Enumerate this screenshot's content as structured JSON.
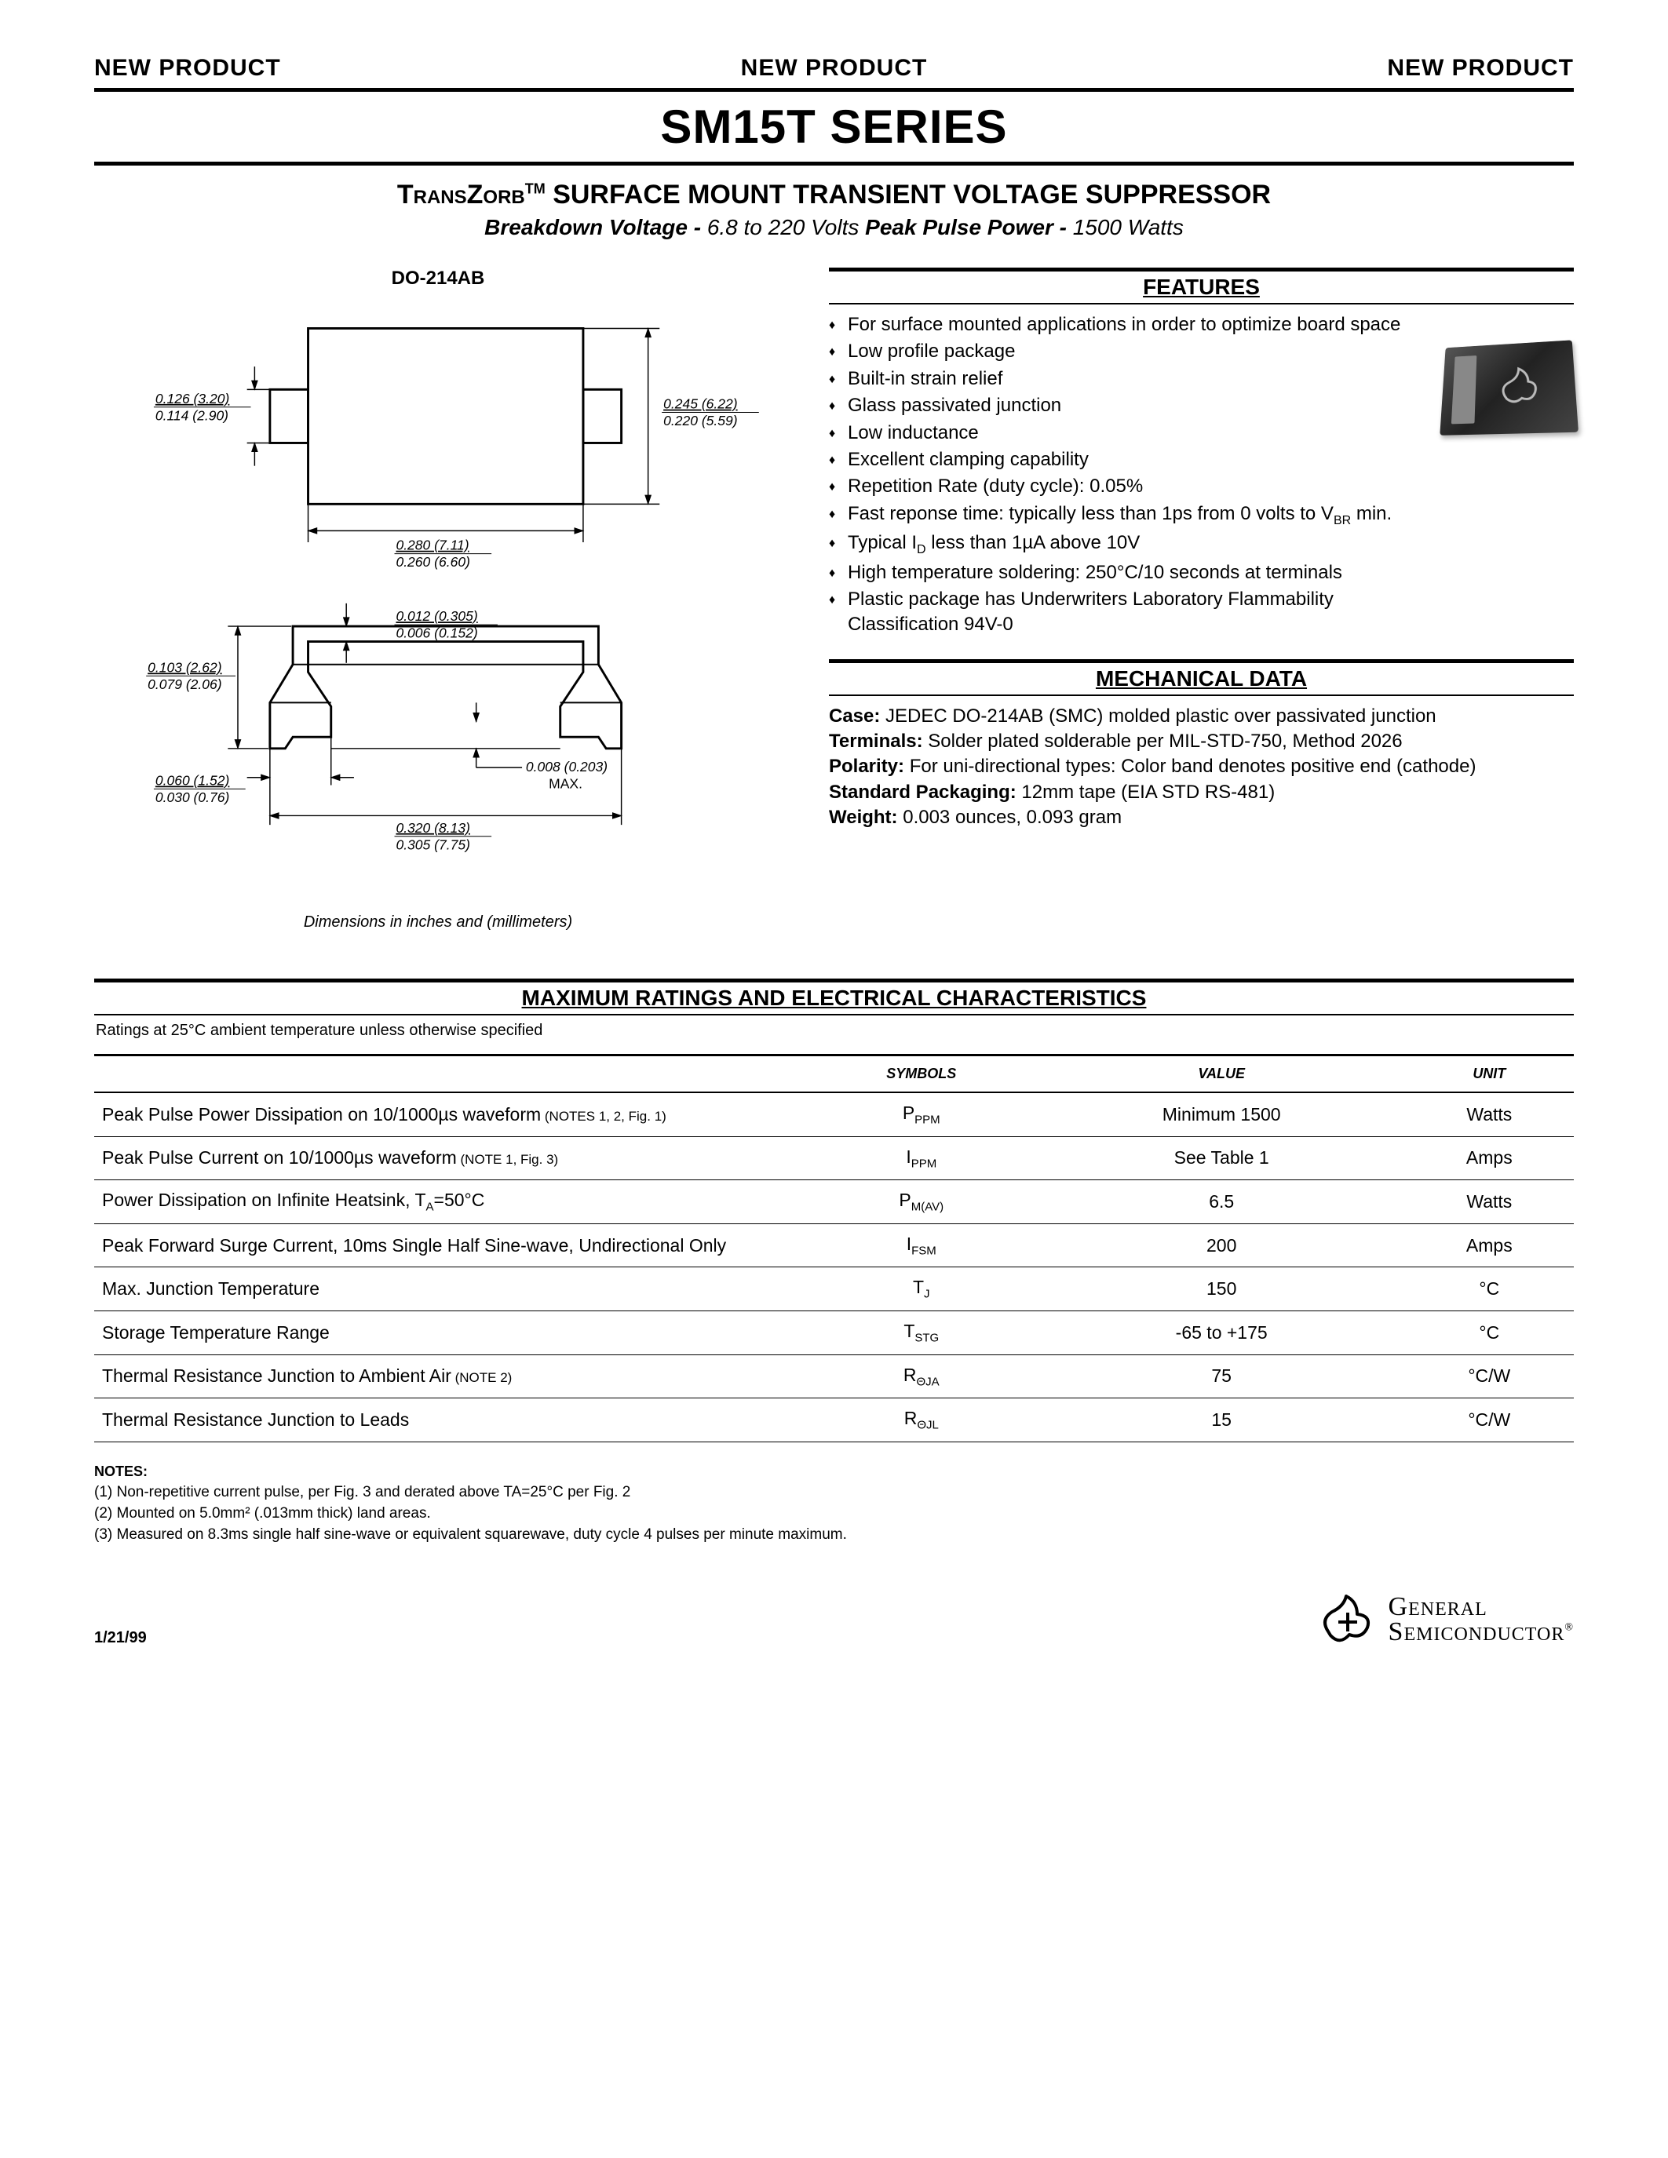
{
  "banner": {
    "text": "NEW PRODUCT"
  },
  "title": "SM15T SERIES",
  "subtitle1_pre": "TransZorb",
  "subtitle1_tm": "TM",
  "subtitle1_rest": " SURFACE MOUNT TRANSIENT VOLTAGE SUPPRESSOR",
  "subtitle2": {
    "bv_label": "Breakdown Voltage - ",
    "bv_val": "6.8 to 220 Volts",
    "ppp_label": "   Peak Pulse Power - ",
    "ppp_val": "1500 Watts"
  },
  "package_label": "DO-214AB",
  "diagram": {
    "top": {
      "left_dim_top": "0.126 (3.20)",
      "left_dim_bot": "0.114 (2.90)",
      "right_dim_top": "0.245 (6.22)",
      "right_dim_bot": "0.220 (5.59)",
      "bottom_dim_top": "0.280 (7.11)",
      "bottom_dim_bot": "0.260 (6.60)"
    },
    "side": {
      "top_dim_top": "0.012 (0.305)",
      "top_dim_bot": "0.006 (0.152)",
      "left_dim_top": "0.103 (2.62)",
      "left_dim_bot": "0.079 (2.06)",
      "botleft_dim_top": "0.060 (1.52)",
      "botleft_dim_bot": "0.030 (0.76)",
      "botright_dim_top": "0.008 (0.203)",
      "botright_dim_bot": "MAX.",
      "botwidth_top": "0.320 (8.13)",
      "botwidth_bot": "0.305 (7.75)"
    },
    "caption": "Dimensions in inches and (millimeters)"
  },
  "features": {
    "heading": "FEATURES",
    "items": [
      "For surface mounted applications in order to optimize board space",
      "Low profile package",
      "Built-in strain relief",
      "Glass passivated junction",
      "Low inductance",
      "Excellent clamping capability",
      "Repetition Rate (duty cycle): 0.05%",
      "Fast reponse time: typically less than 1ps from 0 volts to V<sub>BR</sub> min.",
      "Typical I<sub>D</sub> less than 1µA above 10V",
      "High temperature soldering: 250°C/10 seconds at terminals",
      "Plastic package has Underwriters Laboratory Flammability Classification 94V-0"
    ]
  },
  "mechdata": {
    "heading": "MECHANICAL DATA",
    "case_label": "Case:",
    "case_val": " JEDEC DO-214AB (SMC) molded plastic over passivated junction",
    "term_label": "Terminals:",
    "term_val": " Solder plated solderable per MIL-STD-750, Method 2026",
    "pol_label": "Polarity:",
    "pol_val": " For uni-directional types: Color band denotes positive end (cathode)",
    "pkg_label": "Standard Packaging:",
    "pkg_val": " 12mm tape (EIA STD RS-481)",
    "wt_label": "Weight:",
    "wt_val": " 0.003 ounces, 0.093 gram"
  },
  "maxratings": {
    "heading": "MAXIMUM RATINGS AND ELECTRICAL CHARACTERISTICS",
    "condition": "Ratings at 25°C ambient temperature unless otherwise specified",
    "headers": [
      "",
      "SYMBOLS",
      "VALUE",
      "UNIT"
    ],
    "rows": [
      {
        "desc": "Peak Pulse Power Dissipation on 10/1000µs waveform",
        "note": " (NOTES 1, 2, Fig. 1)",
        "sym_pre": "P",
        "sym_sub": "PPM",
        "value": "Minimum 1500",
        "unit": "Watts"
      },
      {
        "desc": "Peak Pulse Current on 10/1000µs waveform",
        "note": " (NOTE 1, Fig. 3)",
        "sym_pre": "I",
        "sym_sub": "PPM",
        "value": "See Table 1",
        "unit": "Amps"
      },
      {
        "desc": "Power Dissipation on Infinite Heatsink, T",
        "desc_sub": "A",
        "desc_post": "=50°C",
        "note": "",
        "sym_pre": "P",
        "sym_sub": "M(AV)",
        "value": "6.5",
        "unit": "Watts"
      },
      {
        "desc": "Peak Forward Surge Current, 10ms Single Half Sine-wave, Undirectional Only",
        "note": "",
        "sym_pre": "I",
        "sym_sub": "FSM",
        "value": "200",
        "unit": "Amps"
      },
      {
        "desc": "Max. Junction Temperature",
        "note": "",
        "sym_pre": "T",
        "sym_sub": "J",
        "value": "150",
        "unit": "°C"
      },
      {
        "desc": "Storage Temperature Range",
        "note": "",
        "sym_pre": "T",
        "sym_sub": "STG",
        "value": "-65 to +175",
        "unit": "°C"
      },
      {
        "desc": "Thermal Resistance Junction to Ambient Air",
        "note": " (NOTE 2)",
        "sym_pre": "R",
        "sym_sub": "ΘJA",
        "value": "75",
        "unit": "°C/W"
      },
      {
        "desc": "Thermal Resistance Junction to Leads",
        "note": "",
        "sym_pre": "R",
        "sym_sub": "ΘJL",
        "value": "15",
        "unit": "°C/W"
      }
    ]
  },
  "notes": {
    "label": "NOTES:",
    "items": [
      "(1) Non-repetitive current pulse, per Fig. 3 and derated above TA=25°C per Fig. 2",
      "(2) Mounted on 5.0mm² (.013mm thick) land areas.",
      "(3) Measured on 8.3ms single half sine-wave or equivalent squarewave, duty cycle 4 pulses per minute maximum."
    ]
  },
  "footer": {
    "date": "1/21/99",
    "logo_line1": "General",
    "logo_line2": "Semiconductor",
    "reg": "®"
  },
  "colors": {
    "text": "#000000",
    "bg": "#ffffff",
    "rule": "#000000"
  }
}
